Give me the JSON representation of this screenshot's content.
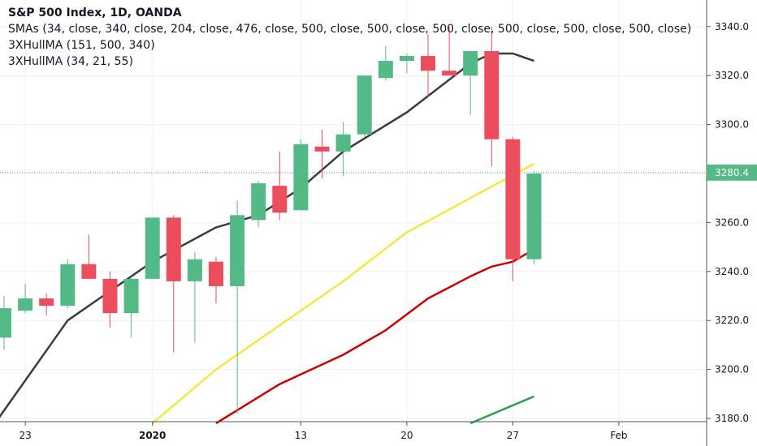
{
  "legend": {
    "title": "S&P 500 Index, 1D, OANDA",
    "line1": "SMAs (34, close, 340, close, 204, close, 476, close, 500, close, 500, close, 500, close, 500, close, 500, close, 500, close)",
    "line2": "3XHullMA (151, 500, 340)",
    "line3": "3XHullMA (34, 21, 55)"
  },
  "chart_data": {
    "type": "candlestick",
    "title": "S&P 500 Index, 1D, OANDA",
    "last_price": "3280.4",
    "y_ticks": [
      3180,
      3200,
      3220,
      3240,
      3260,
      3280,
      3300,
      3320,
      3340
    ],
    "y_tick_labels": [
      "3180.0",
      "3200.0",
      "3220.0",
      "3240.0",
      "3260.0",
      "3280.0",
      "3300.0",
      "3320.0",
      "3340.0"
    ],
    "x_ticks": [
      {
        "label": "23",
        "bar": 1,
        "bold": false
      },
      {
        "label": "2020",
        "bar": 7,
        "bold": true
      },
      {
        "label": "13",
        "bar": 14,
        "bold": false
      },
      {
        "label": "20",
        "bar": 19,
        "bold": false
      },
      {
        "label": "27",
        "bar": 24,
        "bold": false
      },
      {
        "label": "Feb",
        "bar": 29,
        "bold": false
      }
    ],
    "candles": [
      {
        "o": 3213,
        "h": 3230,
        "l": 3208,
        "c": 3225
      },
      {
        "o": 3224,
        "h": 3235,
        "l": 3223,
        "c": 3229
      },
      {
        "o": 3229,
        "h": 3231,
        "l": 3222,
        "c": 3226
      },
      {
        "o": 3226,
        "h": 3245,
        "l": 3225,
        "c": 3243
      },
      {
        "o": 3243,
        "h": 3255,
        "l": 3237,
        "c": 3237
      },
      {
        "o": 3237,
        "h": 3240,
        "l": 3217,
        "c": 3223
      },
      {
        "o": 3223,
        "h": 3238,
        "l": 3213,
        "c": 3237
      },
      {
        "o": 3237,
        "h": 3262,
        "l": 3237,
        "c": 3262
      },
      {
        "o": 3262,
        "h": 3263,
        "l": 3207,
        "c": 3236
      },
      {
        "o": 3236,
        "h": 3248,
        "l": 3211,
        "c": 3245
      },
      {
        "o": 3244,
        "h": 3246,
        "l": 3227,
        "c": 3234
      },
      {
        "o": 3234,
        "h": 3269,
        "l": 3182,
        "c": 3263
      },
      {
        "o": 3261,
        "h": 3277,
        "l": 3258,
        "c": 3276
      },
      {
        "o": 3275,
        "h": 3289,
        "l": 3261,
        "c": 3264
      },
      {
        "o": 3265,
        "h": 3294,
        "l": 3265,
        "c": 3292
      },
      {
        "o": 3291,
        "h": 3298,
        "l": 3278,
        "c": 3289
      },
      {
        "o": 3289,
        "h": 3301,
        "l": 3279,
        "c": 3296
      },
      {
        "o": 3296,
        "h": 3320,
        "l": 3295,
        "c": 3320
      },
      {
        "o": 3319,
        "h": 3332,
        "l": 3318,
        "c": 3326
      },
      {
        "o": 3326,
        "h": 3329,
        "l": 3321,
        "c": 3328
      },
      {
        "o": 3328,
        "h": 3337,
        "l": 3311,
        "c": 3322
      },
      {
        "o": 3322,
        "h": 3340,
        "l": 3320,
        "c": 3320
      },
      {
        "o": 3320,
        "h": 3330,
        "l": 3304,
        "c": 3330
      },
      {
        "o": 3330,
        "h": 3340,
        "l": 3283,
        "c": 3294
      },
      {
        "o": 3294,
        "h": 3295,
        "l": 3236,
        "c": 3245
      },
      {
        "o": 3245,
        "h": 3281,
        "l": 3243,
        "c": 3280
      }
    ],
    "lines": [
      {
        "color": "#3c3c3c",
        "points": [
          [
            -1,
            3171
          ],
          [
            3,
            3220
          ],
          [
            7,
            3244
          ],
          [
            10,
            3258
          ],
          [
            12,
            3263
          ],
          [
            14,
            3274
          ],
          [
            16,
            3289
          ],
          [
            19,
            3305
          ],
          [
            22,
            3325
          ],
          [
            23,
            3329
          ],
          [
            24,
            3329
          ],
          [
            25,
            3326
          ]
        ]
      },
      {
        "color": "#f5e642",
        "points": [
          [
            7,
            3178
          ],
          [
            10,
            3200
          ],
          [
            13,
            3218
          ],
          [
            16,
            3236
          ],
          [
            19,
            3256
          ],
          [
            22,
            3270
          ],
          [
            25,
            3284
          ]
        ]
      },
      {
        "color": "#cc0000",
        "points": [
          [
            10,
            3178
          ],
          [
            13,
            3194
          ],
          [
            16,
            3206
          ],
          [
            18,
            3216
          ],
          [
            20,
            3229
          ],
          [
            22,
            3238
          ],
          [
            23,
            3242
          ],
          [
            24,
            3244
          ],
          [
            25,
            3249
          ]
        ]
      },
      {
        "color": "#2e9e4f",
        "points": [
          [
            22,
            3178
          ],
          [
            25,
            3189
          ]
        ]
      }
    ],
    "up_color": "#53b987",
    "down_color": "#eb4d5c"
  }
}
